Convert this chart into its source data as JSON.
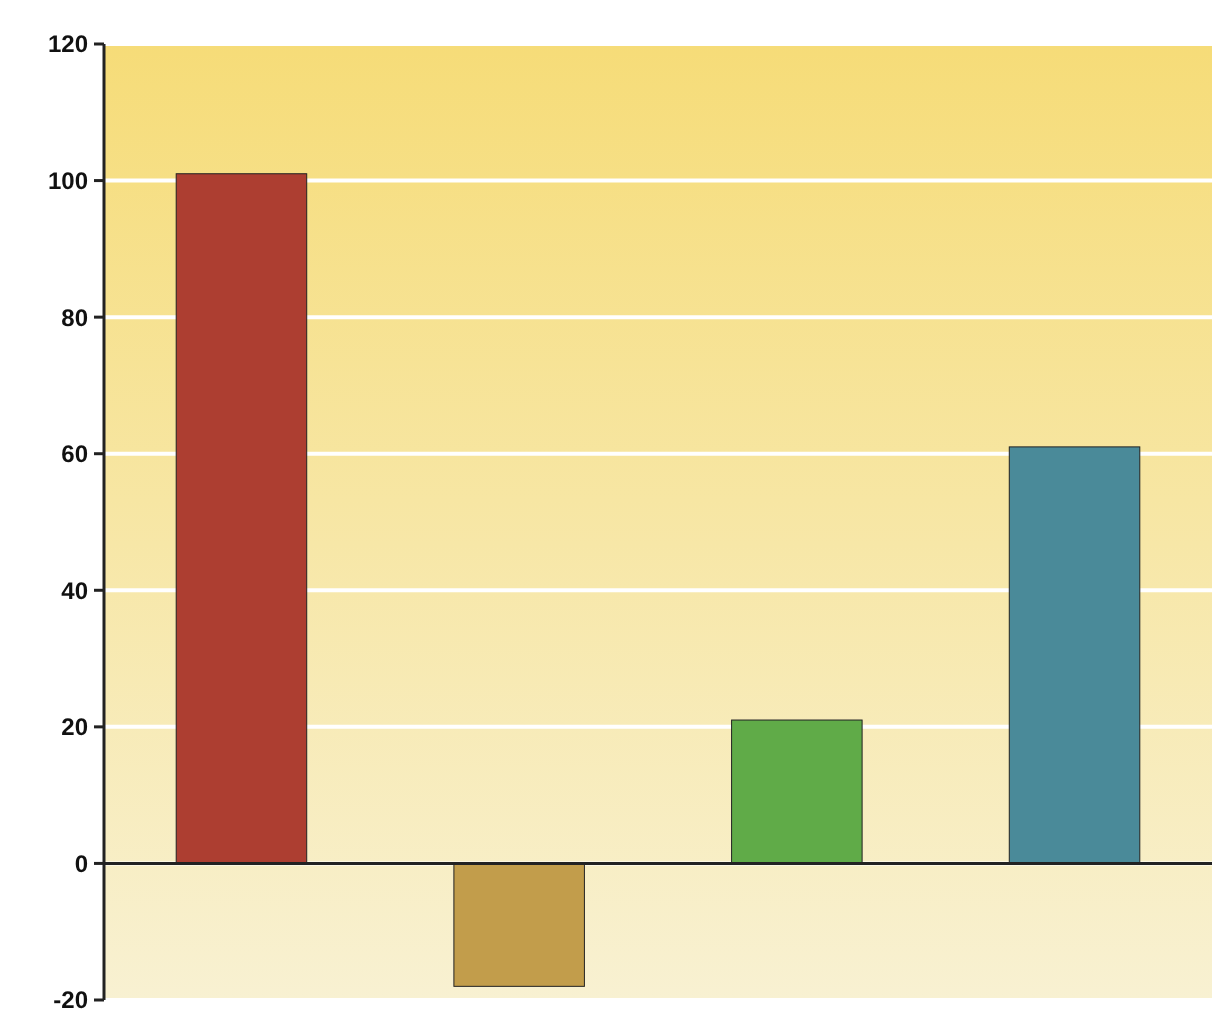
{
  "chart_data": {
    "type": "bar",
    "categories": [
      null,
      null,
      null,
      null
    ],
    "values": [
      101,
      -18,
      21,
      61
    ],
    "colors": [
      "#ad3e31",
      "#c29d4b",
      "#60ab48",
      "#4a8a99"
    ],
    "ylim": [
      -20,
      120
    ],
    "yticks": [
      -20,
      0,
      20,
      40,
      60,
      80,
      100,
      120
    ],
    "grid": "y"
  }
}
